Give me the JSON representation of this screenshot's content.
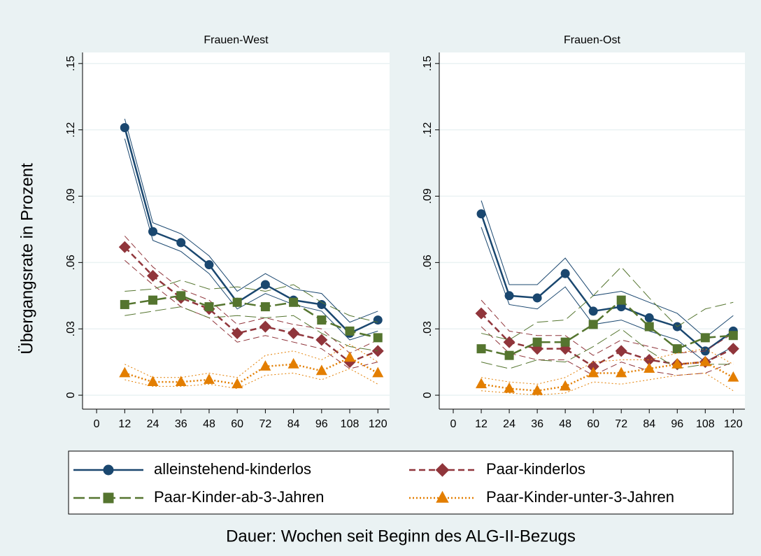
{
  "chart_data": [
    {
      "type": "line",
      "title": "Frauen-West",
      "y_label": "Übergangsrate in Prozent",
      "x_label": "Dauer: Wochen seit Beginn des ALG-II-Bezugs",
      "x": [
        12,
        24,
        36,
        48,
        60,
        72,
        84,
        96,
        108,
        120
      ],
      "xlim": [
        -6,
        125
      ],
      "ylim": [
        -0.0063,
        0.155
      ],
      "xticks": [
        0,
        12,
        24,
        36,
        48,
        60,
        72,
        84,
        96,
        108,
        120
      ],
      "yticks": [
        0,
        {
          "value": 0.03,
          "label": ".03"
        },
        {
          "value": 0.06,
          "label": ".06"
        },
        {
          "value": 0.09,
          "label": ".09"
        },
        {
          "value": 0.12,
          "label": ".12"
        },
        {
          "value": 0.15,
          "label": ".15"
        }
      ],
      "grid": true,
      "series": [
        {
          "name": "alleinstehend-kinderlos",
          "color": "#1a476f",
          "marker": "circle",
          "dash": "solid",
          "values": [
            0.121,
            0.074,
            0.069,
            0.059,
            0.042,
            0.05,
            0.043,
            0.041,
            0.028,
            0.034
          ],
          "upper": [
            0.125,
            0.078,
            0.073,
            0.063,
            0.047,
            0.055,
            0.048,
            0.046,
            0.033,
            0.038
          ],
          "lower": [
            0.116,
            0.07,
            0.065,
            0.055,
            0.039,
            0.046,
            0.041,
            0.038,
            0.025,
            0.029
          ]
        },
        {
          "name": "Paar-kinderlos",
          "color": "#90353b",
          "marker": "diamond",
          "dash": "dash",
          "values": [
            0.067,
            0.054,
            0.044,
            0.039,
            0.028,
            0.031,
            0.028,
            0.025,
            0.015,
            0.02
          ],
          "upper": [
            0.072,
            0.058,
            0.048,
            0.043,
            0.032,
            0.035,
            0.032,
            0.03,
            0.019,
            0.025
          ],
          "lower": [
            0.061,
            0.05,
            0.04,
            0.035,
            0.024,
            0.027,
            0.024,
            0.021,
            0.012,
            0.015
          ]
        },
        {
          "name": "Paar-Kinder-ab-3-Jahren",
          "color": "#55752f",
          "marker": "square",
          "dash": "longdash",
          "values": [
            0.041,
            0.043,
            0.045,
            0.04,
            0.042,
            0.04,
            0.042,
            0.034,
            0.029,
            0.026
          ],
          "upper": [
            0.047,
            0.048,
            0.052,
            0.048,
            0.049,
            0.047,
            0.05,
            0.042,
            0.036,
            0.033
          ],
          "lower": [
            0.036,
            0.038,
            0.04,
            0.035,
            0.036,
            0.035,
            0.036,
            0.028,
            0.022,
            0.02
          ]
        },
        {
          "name": "Paar-Kinder-unter-3-Jahren",
          "color": "#e37e00",
          "marker": "triangle",
          "dash": "dot",
          "values": [
            0.01,
            0.006,
            0.006,
            0.007,
            0.005,
            0.013,
            0.014,
            0.011,
            0.017,
            0.01
          ],
          "upper": [
            0.014,
            0.008,
            0.008,
            0.01,
            0.008,
            0.018,
            0.02,
            0.016,
            0.023,
            0.015
          ],
          "lower": [
            0.007,
            0.004,
            0.004,
            0.005,
            0.003,
            0.009,
            0.01,
            0.007,
            0.012,
            0.005
          ]
        }
      ]
    },
    {
      "type": "line",
      "title": "Frauen-Ost",
      "x": [
        12,
        24,
        36,
        48,
        60,
        72,
        84,
        96,
        108,
        120
      ],
      "xlim": [
        -6,
        125
      ],
      "ylim": [
        -0.0063,
        0.155
      ],
      "xticks": [
        0,
        12,
        24,
        36,
        48,
        60,
        72,
        84,
        96,
        108,
        120
      ],
      "yticks": [
        0,
        {
          "value": 0.03,
          "label": ".03"
        },
        {
          "value": 0.06,
          "label": ".06"
        },
        {
          "value": 0.09,
          "label": ".09"
        },
        {
          "value": 0.12,
          "label": ".12"
        },
        {
          "value": 0.15,
          "label": ".15"
        }
      ],
      "grid": true,
      "series": [
        {
          "color": "#1a476f",
          "marker": "circle",
          "dash": "solid",
          "values": [
            0.082,
            0.045,
            0.044,
            0.055,
            0.038,
            0.04,
            0.035,
            0.031,
            0.02,
            0.029
          ],
          "upper": [
            0.088,
            0.05,
            0.05,
            0.062,
            0.045,
            0.047,
            0.042,
            0.037,
            0.026,
            0.036
          ],
          "lower": [
            0.076,
            0.041,
            0.039,
            0.049,
            0.032,
            0.034,
            0.029,
            0.025,
            0.015,
            0.022
          ]
        },
        {
          "color": "#90353b",
          "marker": "diamond",
          "dash": "dash",
          "values": [
            0.037,
            0.024,
            0.021,
            0.021,
            0.013,
            0.02,
            0.016,
            0.014,
            0.015,
            0.021
          ],
          "upper": [
            0.043,
            0.029,
            0.027,
            0.027,
            0.018,
            0.025,
            0.022,
            0.019,
            0.02,
            0.028
          ],
          "lower": [
            0.031,
            0.019,
            0.016,
            0.016,
            0.009,
            0.015,
            0.011,
            0.009,
            0.01,
            0.015
          ]
        },
        {
          "color": "#55752f",
          "marker": "square",
          "dash": "longdash",
          "values": [
            0.021,
            0.018,
            0.024,
            0.024,
            0.032,
            0.043,
            0.031,
            0.021,
            0.026,
            0.027
          ],
          "upper": [
            0.028,
            0.025,
            0.033,
            0.034,
            0.045,
            0.058,
            0.044,
            0.031,
            0.039,
            0.042
          ],
          "lower": [
            0.015,
            0.012,
            0.016,
            0.015,
            0.022,
            0.03,
            0.02,
            0.012,
            0.014,
            0.014
          ]
        },
        {
          "color": "#e37e00",
          "marker": "triangle",
          "dash": "dot",
          "values": [
            0.005,
            0.003,
            0.002,
            0.004,
            0.01,
            0.01,
            0.012,
            0.014,
            0.015,
            0.008
          ],
          "upper": [
            0.008,
            0.006,
            0.005,
            0.008,
            0.015,
            0.016,
            0.016,
            0.019,
            0.021,
            0.014
          ],
          "lower": [
            0.002,
            0.001,
            0.0,
            0.001,
            0.006,
            0.005,
            0.007,
            0.009,
            0.01,
            0.002
          ]
        }
      ]
    }
  ]
}
